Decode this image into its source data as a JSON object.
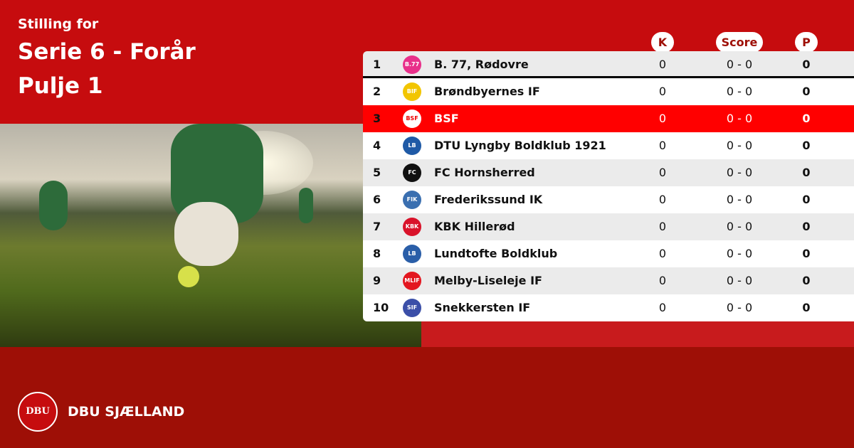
{
  "header": {
    "subtitle": "Stilling for",
    "title_line1": "Serie 6 - Forår",
    "title_line2": "Pulje 1"
  },
  "columns": {
    "k": "K",
    "score": "Score",
    "p": "P"
  },
  "rows": [
    {
      "rank": "1",
      "team": "B. 77, Rødovre",
      "k": "0",
      "score": "0 - 0",
      "p": "0",
      "logo_color": "#e8308a",
      "logo_text": "B.77"
    },
    {
      "rank": "2",
      "team": "Brøndbyernes IF",
      "k": "0",
      "score": "0 - 0",
      "p": "0",
      "logo_color": "#f2c500",
      "logo_text": "BIF"
    },
    {
      "rank": "3",
      "team": "BSF",
      "k": "0",
      "score": "0 - 0",
      "p": "0",
      "logo_color": "#ffffff",
      "logo_text": "BSF",
      "highlighted": true
    },
    {
      "rank": "4",
      "team": "DTU Lyngby Boldklub 1921",
      "k": "0",
      "score": "0 - 0",
      "p": "0",
      "logo_color": "#1f5aa6",
      "logo_text": "LB"
    },
    {
      "rank": "5",
      "team": "FC Hornsherred",
      "k": "0",
      "score": "0 - 0",
      "p": "0",
      "logo_color": "#111111",
      "logo_text": "FC"
    },
    {
      "rank": "6",
      "team": "Frederikssund IK",
      "k": "0",
      "score": "0 - 0",
      "p": "0",
      "logo_color": "#3a6fb0",
      "logo_text": "FIK"
    },
    {
      "rank": "7",
      "team": "KBK Hillerød",
      "k": "0",
      "score": "0 - 0",
      "p": "0",
      "logo_color": "#d9122a",
      "logo_text": "KBK"
    },
    {
      "rank": "8",
      "team": "Lundtofte Boldklub",
      "k": "0",
      "score": "0 - 0",
      "p": "0",
      "logo_color": "#2a5ea8",
      "logo_text": "LB"
    },
    {
      "rank": "9",
      "team": "Melby-Liseleje IF",
      "k": "0",
      "score": "0 - 0",
      "p": "0",
      "logo_color": "#e3161f",
      "logo_text": "MLIF"
    },
    {
      "rank": "10",
      "team": "Snekkersten IF",
      "k": "0",
      "score": "0 - 0",
      "p": "0",
      "logo_color": "#3b4fa8",
      "logo_text": "SIF"
    }
  ],
  "colors": {
    "brand_red": "#c60c0e",
    "dark_red": "#9e0f06",
    "highlight": "#ff0000"
  },
  "footer": {
    "brand": "DBU SJÆLLAND",
    "seal_text": "DBU"
  }
}
